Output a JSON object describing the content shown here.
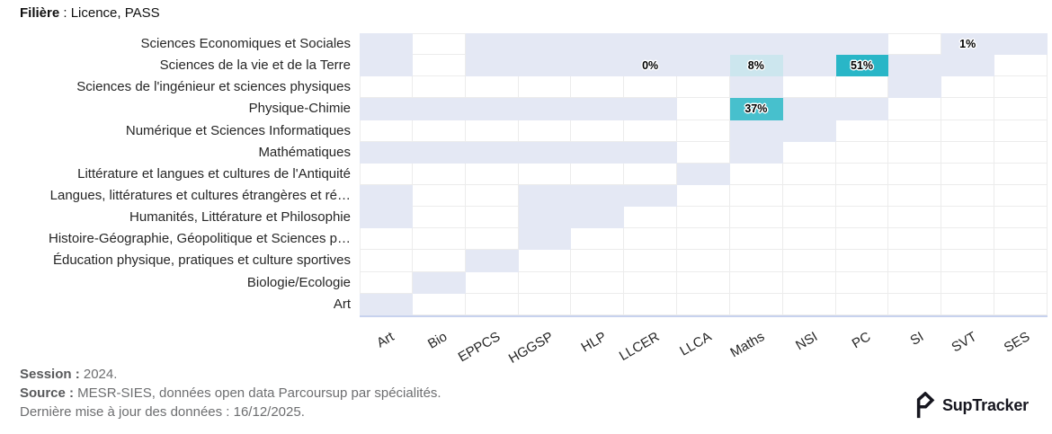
{
  "header": {
    "title_label": "Filière",
    "title_rest": " : Licence, PASS"
  },
  "chart_data": {
    "type": "heatmap",
    "title": "Filière : Licence, PASS",
    "x_categories": [
      "Art",
      "Bio",
      "EPPCS",
      "HGGSP",
      "HLP",
      "LLCER",
      "LLCA",
      "Maths",
      "NSI",
      "PC",
      "SI",
      "SVT",
      "SES"
    ],
    "y_categories": [
      "Sciences Economiques et Sociales",
      "Sciences de la vie et de la Terre",
      "Sciences de l'ingénieur et sciences physiques",
      "Physique-Chimie",
      "Numérique et Sciences Informatiques",
      "Mathématiques",
      "Littérature et langues et cultures de l'Antiquité",
      "Langues, littératures et cultures étrangères et ré…",
      "Humanités, Littérature et Philosophie",
      "Histoire-Géographie, Géopolitique et Sciences p…",
      "Éducation physique, pratiques et culture sportives",
      "Biologie/Ecologie",
      "Art"
    ],
    "grid": [
      "l.llllllll.ll",
      "l.lllllalcll.",
      ".......l..l..",
      "llllll.bll...",
      ".......ll....",
      "llllll.l.....",
      "......l......",
      "l..lll.......",
      "l..ll........",
      "...l.........",
      "..l..........",
      ".l...........",
      "l............"
    ],
    "color_scale": {
      ".": "#ffffff",
      "l": "#e4e8f4",
      "a": "#cce6ee",
      "b": "#47c0cd",
      "c": "#29b6c7"
    },
    "cell_labels": [
      {
        "row": 0,
        "col": 11,
        "text": "1%"
      },
      {
        "row": 1,
        "col": 5,
        "text": "0%"
      },
      {
        "row": 1,
        "col": 7,
        "text": "8%"
      },
      {
        "row": 1,
        "col": 9,
        "text": "51%"
      },
      {
        "row": 3,
        "col": 7,
        "text": "37%"
      }
    ],
    "layout": {
      "grid_on": true,
      "legend": "none",
      "x_tick_rotation": -30
    }
  },
  "footer": {
    "session_label": "Session :",
    "session_value": " 2024.",
    "source_label": "Source :",
    "source_value": " MESR-SIES, données open data Parcoursup par spécialités.",
    "updated_line": "Dernière mise à jour des données : 16/12/2025."
  },
  "logo": {
    "text": "SupTracker",
    "color": "#16161f"
  }
}
